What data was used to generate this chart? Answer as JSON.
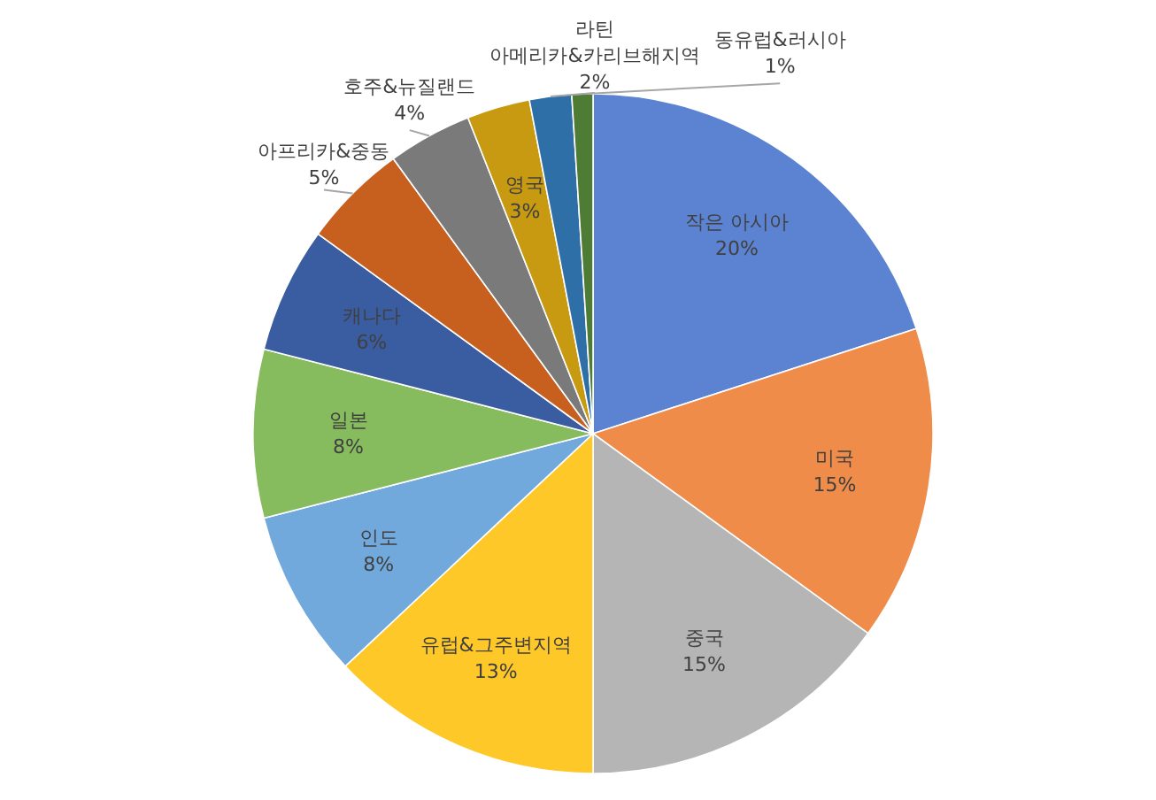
{
  "chart_data": {
    "type": "pie",
    "categories": [
      "작은 아시아",
      "미국",
      "중국",
      "유럽&그주변지역",
      "인도",
      "일본",
      "캐나다",
      "아프리카&중동",
      "호주&뉴질랜드",
      "영국",
      "라틴 아메리카&카리브해지역",
      "동유럽&러시아"
    ],
    "values": [
      20,
      15,
      15,
      13,
      8,
      8,
      6,
      5,
      4,
      3,
      2,
      1
    ],
    "colors": [
      "#5b83d2",
      "#f08c4a",
      "#b5b5b5",
      "#ffc829",
      "#72a9dc",
      "#86bb5e",
      "#3a5ca0",
      "#c75f1f",
      "#7a7a7a",
      "#c79a12",
      "#2f6fa8",
      "#4e7c34"
    ],
    "value_labels": [
      "20%",
      "15%",
      "15%",
      "13%",
      "8%",
      "8%",
      "6%",
      "5%",
      "4%",
      "3%",
      "2%",
      "1%"
    ]
  }
}
